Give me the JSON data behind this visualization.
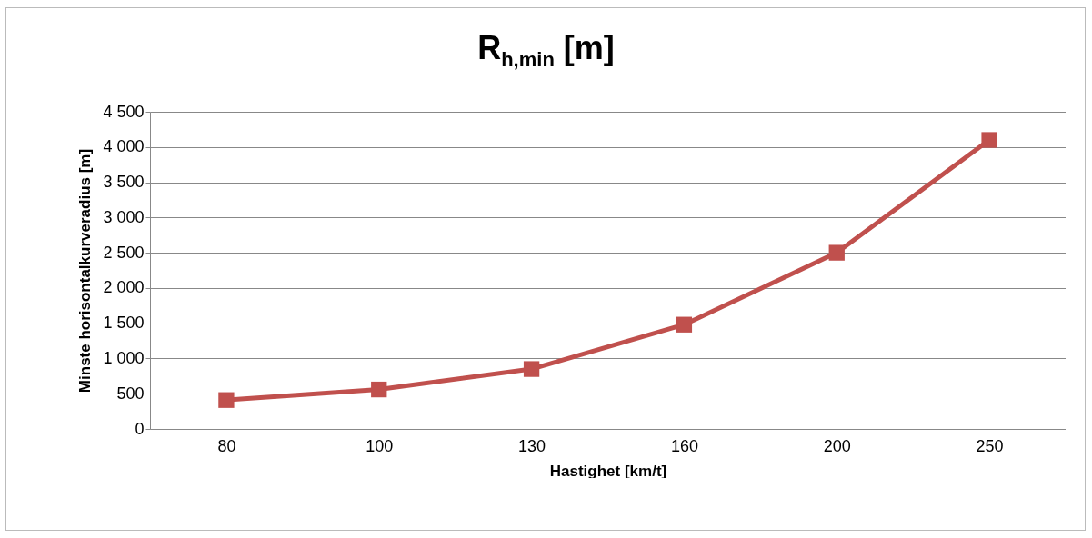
{
  "chart_data": {
    "type": "line",
    "title": "R$_{h,min}$ [m]",
    "xlabel": "Hastighet [km/t]",
    "ylabel": "Minste horisontalkurveradius [m]",
    "categories": [
      "80",
      "100",
      "130",
      "160",
      "200",
      "250"
    ],
    "series": [
      {
        "color": "#c0504d",
        "values": [
          410,
          560,
          850,
          1480,
          2500,
          4100
        ]
      }
    ],
    "ylim": [
      0,
      4500
    ],
    "yticks": [
      0,
      {
        "value": 500,
        "label": "500"
      },
      {
        "value": 1000,
        "label": "1 000"
      },
      {
        "value": 1500,
        "label": "1 500"
      },
      {
        "value": 2000,
        "label": "2 000"
      },
      {
        "value": 2500,
        "label": "2 500"
      },
      {
        "value": 3000,
        "label": "3 000"
      },
      {
        "value": 3500,
        "label": "3 500"
      },
      {
        "value": 4000,
        "label": "4 000"
      },
      {
        "value": 4500,
        "label": "4 500"
      }
    ],
    "grid": "y",
    "marker": "square",
    "line_style": "solid"
  }
}
